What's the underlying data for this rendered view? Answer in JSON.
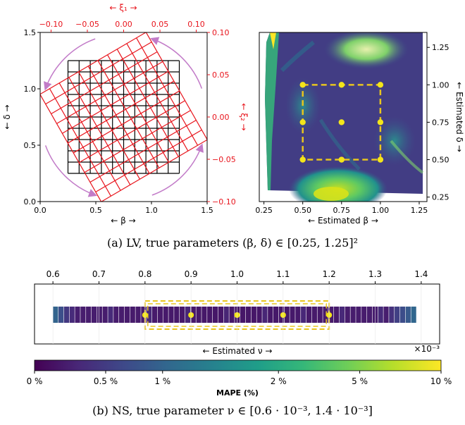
{
  "chart_data": [
    {
      "type": "diagram",
      "panel": "a-left",
      "xlabel": "← β →",
      "ylabel": "← δ →",
      "x2label": "← ξ₁ →",
      "y2label": "← ξ₂ →",
      "xlim": [
        0.0,
        1.5
      ],
      "ylim": [
        0.0,
        1.5
      ],
      "x_ticks": [
        "0.0",
        "0.5",
        "1.0",
        "1.5"
      ],
      "y_ticks": [
        "0.0",
        "0.5",
        "1.0",
        "1.5"
      ],
      "x2lim": [
        -0.1,
        0.1
      ],
      "y2lim": [
        -0.1,
        0.1
      ],
      "x2_ticks": [
        "−0.10",
        "−0.05",
        "0.00",
        "0.05",
        "0.10"
      ],
      "y2_ticks": [
        "0.10",
        "0.05",
        "0.00",
        "−0.05",
        "−0.10"
      ],
      "black_grid": {
        "range": [
          0.25,
          1.25
        ],
        "n": 11
      },
      "red_grid": {
        "center": [
          0.75,
          0.75
        ],
        "half_width": 0.55,
        "rotation_deg": 30,
        "n": 12
      },
      "colors": {
        "black_grid": "#000000",
        "red_grid": "#e8141c",
        "arrows": "#c27bc8"
      }
    },
    {
      "type": "heatmap",
      "panel": "a-right",
      "xlabel": "← Estimated β →",
      "ylabel": "← Estimated δ →",
      "xlim": [
        0.22,
        1.3
      ],
      "ylim": [
        0.22,
        1.35
      ],
      "x_ticks": [
        "0.25",
        "0.50",
        "0.75",
        "1.00",
        "1.25"
      ],
      "y_ticks": [
        "0.25",
        "0.50",
        "0.75",
        "1.00",
        "1.25"
      ],
      "box": {
        "x": [
          0.5,
          1.0
        ],
        "y": [
          0.5,
          1.0
        ]
      },
      "points": [
        [
          0.5,
          1.0
        ],
        [
          0.75,
          1.0
        ],
        [
          1.0,
          1.0
        ],
        [
          0.5,
          0.75
        ],
        [
          0.75,
          0.75
        ],
        [
          1.0,
          0.75
        ],
        [
          0.5,
          0.5
        ],
        [
          0.75,
          0.5
        ],
        [
          1.0,
          0.5
        ]
      ],
      "colors": {
        "box": "#e8c51e",
        "points": "#f3e51a"
      }
    },
    {
      "type": "heatmap",
      "panel": "b",
      "xlabel": "← Estimated ν →",
      "x_multiplier": "×10⁻³",
      "xlim": [
        0.56,
        1.44
      ],
      "x_ticks": [
        "0.6",
        "0.7",
        "0.8",
        "0.9",
        "1.0",
        "1.1",
        "1.2",
        "1.3",
        "1.4"
      ],
      "strip_range": [
        0.6,
        1.39
      ],
      "box": {
        "x": [
          0.8,
          1.2
        ]
      },
      "points": [
        0.8,
        0.9,
        1.0,
        1.1,
        1.2
      ],
      "colors": {
        "box": "#e8c51e",
        "points": "#f3e51a"
      }
    },
    {
      "type": "colorbar",
      "label": "MAPE (%)",
      "ticks": [
        "0 %",
        "0.5 %",
        "1 %",
        "2 %",
        "5 %",
        "10 %"
      ],
      "tick_values": [
        0,
        0.5,
        1,
        2,
        5,
        10
      ],
      "colormap": "viridis"
    }
  ],
  "captions": {
    "a": "(a) LV, true parameters (β, δ) ∈ [0.25, 1.25]²",
    "b": "(b) NS, true parameter ν ∈ [0.6 · 10⁻³, 1.4 · 10⁻³]"
  },
  "colors": {
    "viridis": [
      "#440154",
      "#482878",
      "#3e4989",
      "#31688e",
      "#26828e",
      "#1f9e89",
      "#35b779",
      "#6ece58",
      "#b5de2b",
      "#fde725"
    ]
  }
}
